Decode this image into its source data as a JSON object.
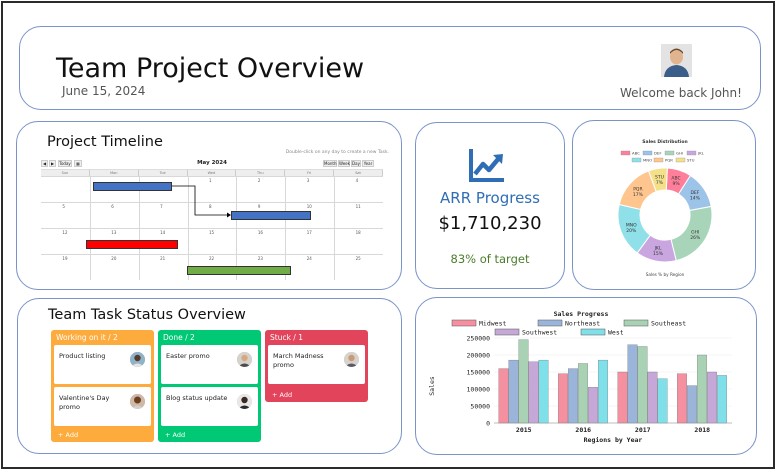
{
  "header": {
    "title": "Team Project Overview",
    "date": "June 15, 2024",
    "welcome": "Welcome back John!"
  },
  "timeline": {
    "title": "Project Timeline",
    "hint": "Double-click on any day to create a new Task.",
    "month": "May 2024",
    "nav_buttons": [
      "◀",
      "▶",
      "Today",
      "▦"
    ],
    "view_buttons": [
      "Month",
      "Week",
      "Day",
      "Year"
    ],
    "day_headers": [
      "Sun",
      "Mon",
      "Tue",
      "Wed",
      "Thu",
      "Fri",
      "Sat"
    ],
    "weeks": [
      [
        "",
        "",
        "",
        "1",
        "2",
        "3",
        "4"
      ],
      [
        "5",
        "6",
        "7",
        "8",
        "9",
        "10",
        "11"
      ],
      [
        "12",
        "13",
        "14",
        "15",
        "16",
        "17",
        "18"
      ],
      [
        "19",
        "20",
        "21",
        "22",
        "23",
        "24",
        "25"
      ]
    ],
    "colors": {
      "blue": "#4472c4",
      "red": "#ff0000",
      "green": "#70ad47"
    }
  },
  "arr": {
    "label": "ARR Progress",
    "value": "$1,710,230",
    "target": "83% of target",
    "icon": "trending-up-icon",
    "accent": "#2f6db5"
  },
  "tasks": {
    "title": "Team Task Status Overview",
    "add_label": "+ Add",
    "columns": [
      {
        "header": "Working on it / 2",
        "color": "#fdab3d",
        "items": [
          {
            "text": "Product listing"
          },
          {
            "text": "Valentine's Day promo"
          }
        ]
      },
      {
        "header": "Done / 2",
        "color": "#00c875",
        "items": [
          {
            "text": "Easter promo"
          },
          {
            "text": "Blog status update"
          }
        ]
      },
      {
        "header": "Stuck / 1",
        "color": "#e2445c",
        "items": [
          {
            "text": "March Madness promo"
          }
        ]
      }
    ]
  },
  "chart_data": [
    {
      "type": "pie",
      "title": "Sales Distribution",
      "subtitle": "Sales % by Region",
      "donut": true,
      "legend_position": "top",
      "slices": [
        {
          "label": "ABC",
          "value": 9,
          "text": "9%",
          "color": "#ff7f9a"
        },
        {
          "label": "DEF",
          "value": 14,
          "text": "14%",
          "color": "#9cc4e8"
        },
        {
          "label": "GHI",
          "value": 26,
          "text": "26%",
          "color": "#a8d5ba"
        },
        {
          "label": "JKL",
          "value": 15,
          "text": "15%",
          "color": "#c9a6e0"
        },
        {
          "label": "MNO",
          "value": 20,
          "text": "20%",
          "color": "#8fe0e8"
        },
        {
          "label": "PQR",
          "value": 17,
          "text": "17%",
          "color": "#ffc58f"
        },
        {
          "label": "STU",
          "value": 7,
          "text": "7%",
          "color": "#f5e08a"
        }
      ]
    },
    {
      "type": "bar",
      "title": "Sales Progress",
      "xlabel": "Regions by Year",
      "ylabel": "Sales",
      "ylim": [
        0,
        250000
      ],
      "yticks": [
        0,
        50000,
        100000,
        150000,
        200000,
        250000
      ],
      "ytick_labels": [
        "0",
        "50000",
        "100000",
        "150000",
        "200000",
        "250000"
      ],
      "categories": [
        "2015",
        "2016",
        "2017",
        "2018"
      ],
      "legend_position": "top",
      "series": [
        {
          "name": "Midwest",
          "color": "#f4909f",
          "values": [
            160000,
            145000,
            150000,
            145000
          ]
        },
        {
          "name": "Northeast",
          "color": "#9bb4d9",
          "values": [
            185000,
            160000,
            230000,
            110000
          ]
        },
        {
          "name": "Southeast",
          "color": "#a9d1b4",
          "values": [
            245000,
            175000,
            225000,
            200000
          ]
        },
        {
          "name": "Southwest",
          "color": "#c5a8d8",
          "values": [
            180000,
            105000,
            150000,
            150000
          ]
        },
        {
          "name": "West",
          "color": "#7fe0ea",
          "values": [
            185000,
            185000,
            130000,
            140000
          ]
        }
      ]
    }
  ]
}
